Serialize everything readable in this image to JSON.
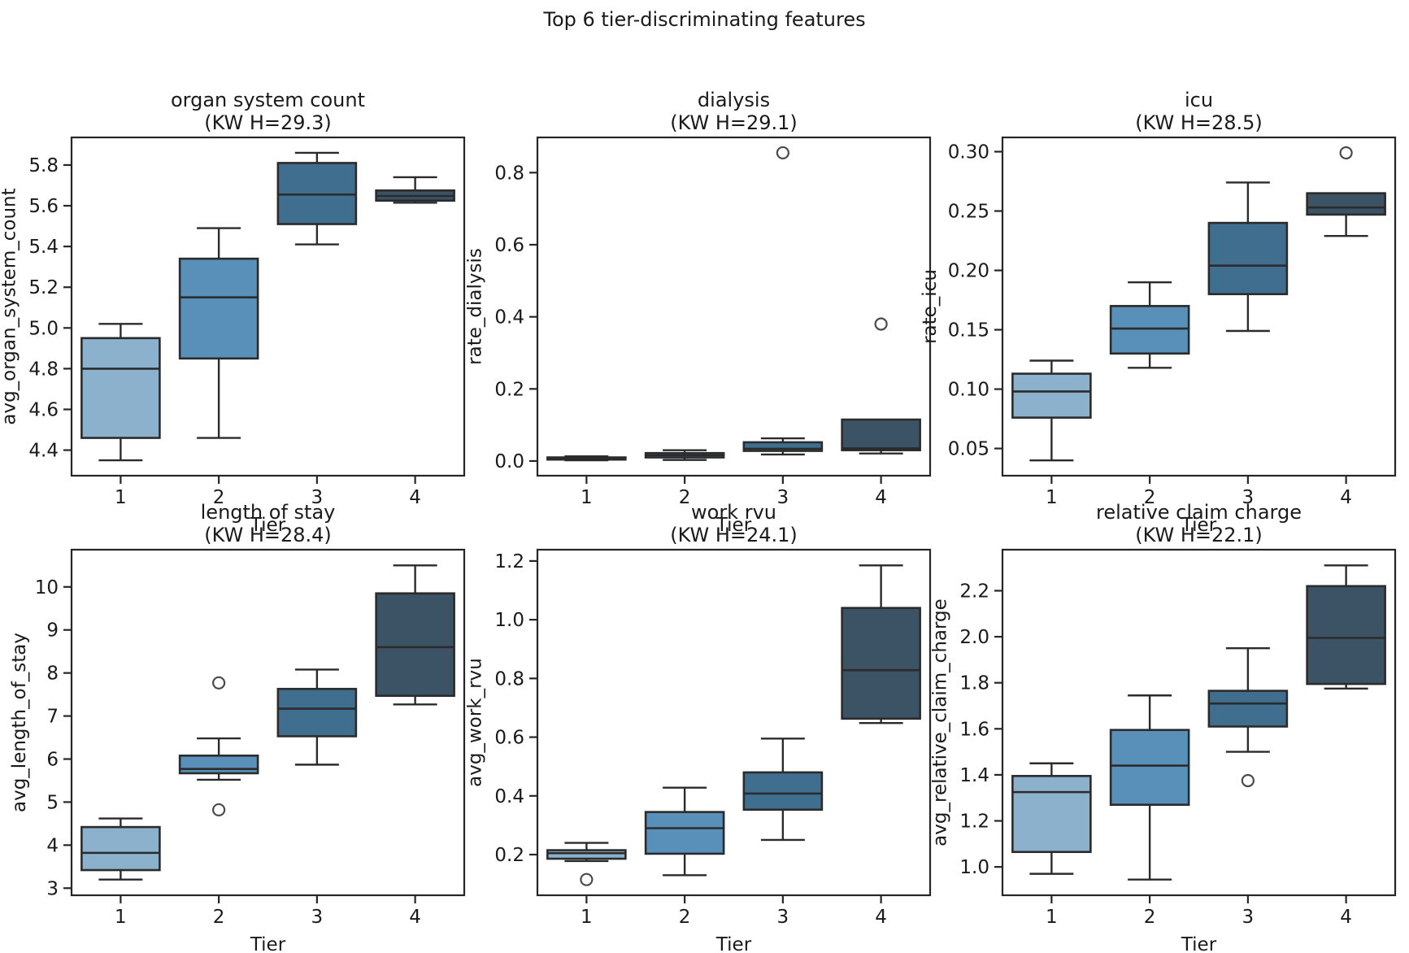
{
  "figure": {
    "suptitle": "Top 6 tier-discriminating features",
    "background": "#ffffff"
  },
  "palette": {
    "tier1": "#8CB1CD",
    "tier2": "#5890B9",
    "tier3": "#3F6E8F",
    "tier4": "#3C5265",
    "box_edge": "#2B2B2B",
    "whisker": "#2B2B2B",
    "outlier_edge": "#4A4A4A",
    "spine": "#262626",
    "text": "#1A1A1A"
  },
  "chart_data": [
    {
      "type": "box",
      "slug": "organ-system-count",
      "title": "organ system count",
      "subtitle": "(KW H=29.3)",
      "kw_h": 29.3,
      "xlabel": "Tier",
      "ylabel": "avg_organ_system_count",
      "categories": [
        "1",
        "2",
        "3",
        "4"
      ],
      "ylim": [
        4.2745,
        5.9355
      ],
      "yticks": [
        {
          "v": 4.4,
          "label": "4.4"
        },
        {
          "v": 4.6,
          "label": "4.6"
        },
        {
          "v": 4.8,
          "label": "4.8"
        },
        {
          "v": 5.0,
          "label": "5.0"
        },
        {
          "v": 5.2,
          "label": "5.2"
        },
        {
          "v": 5.4,
          "label": "5.4"
        },
        {
          "v": 5.6,
          "label": "5.6"
        },
        {
          "v": 5.8,
          "label": "5.8"
        }
      ],
      "boxes": [
        {
          "tier": "1",
          "whislo": 4.35,
          "q1": 4.46,
          "med": 4.8,
          "q3": 4.95,
          "whishi": 5.02,
          "fliers": []
        },
        {
          "tier": "2",
          "whislo": 4.46,
          "q1": 4.85,
          "med": 5.15,
          "q3": 5.34,
          "whishi": 5.49,
          "fliers": []
        },
        {
          "tier": "3",
          "whislo": 5.41,
          "q1": 5.51,
          "med": 5.655,
          "q3": 5.81,
          "whishi": 5.86,
          "fliers": []
        },
        {
          "tier": "4",
          "whislo": 5.615,
          "q1": 5.625,
          "med": 5.648,
          "q3": 5.675,
          "whishi": 5.74,
          "fliers": []
        }
      ]
    },
    {
      "type": "box",
      "slug": "dialysis",
      "title": "dialysis",
      "subtitle": "(KW H=29.1)",
      "kw_h": 29.1,
      "xlabel": "Tier",
      "ylabel": "rate_dialysis",
      "categories": [
        "1",
        "2",
        "3",
        "4"
      ],
      "ylim": [
        -0.0407,
        0.8977
      ],
      "yticks": [
        {
          "v": 0.0,
          "label": "0.0"
        },
        {
          "v": 0.2,
          "label": "0.2"
        },
        {
          "v": 0.4,
          "label": "0.4"
        },
        {
          "v": 0.6,
          "label": "0.6"
        },
        {
          "v": 0.8,
          "label": "0.8"
        }
      ],
      "boxes": [
        {
          "tier": "1",
          "whislo": 0.002,
          "q1": 0.004,
          "med": 0.007,
          "q3": 0.01,
          "whishi": 0.013,
          "fliers": []
        },
        {
          "tier": "2",
          "whislo": 0.003,
          "q1": 0.01,
          "med": 0.016,
          "q3": 0.022,
          "whishi": 0.03,
          "fliers": []
        },
        {
          "tier": "3",
          "whislo": 0.018,
          "q1": 0.028,
          "med": 0.034,
          "q3": 0.052,
          "whishi": 0.063,
          "fliers": [
            0.855
          ]
        },
        {
          "tier": "4",
          "whislo": 0.021,
          "q1": 0.03,
          "med": 0.035,
          "q3": 0.115,
          "whishi": 0.115,
          "fliers": [
            0.38
          ]
        }
      ]
    },
    {
      "type": "box",
      "slug": "icu",
      "title": "icu",
      "subtitle": "(KW H=28.5)",
      "kw_h": 28.5,
      "xlabel": "Tier",
      "ylabel": "rate_icu",
      "categories": [
        "1",
        "2",
        "3",
        "4"
      ],
      "ylim": [
        0.0271,
        0.312
      ],
      "yticks": [
        {
          "v": 0.05,
          "label": "0.05"
        },
        {
          "v": 0.1,
          "label": "0.10"
        },
        {
          "v": 0.15,
          "label": "0.15"
        },
        {
          "v": 0.2,
          "label": "0.20"
        },
        {
          "v": 0.25,
          "label": "0.25"
        },
        {
          "v": 0.3,
          "label": "0.30"
        }
      ],
      "boxes": [
        {
          "tier": "1",
          "whislo": 0.04,
          "q1": 0.076,
          "med": 0.098,
          "q3": 0.113,
          "whishi": 0.124,
          "fliers": []
        },
        {
          "tier": "2",
          "whislo": 0.118,
          "q1": 0.13,
          "med": 0.151,
          "q3": 0.17,
          "whishi": 0.19,
          "fliers": []
        },
        {
          "tier": "3",
          "whislo": 0.149,
          "q1": 0.18,
          "med": 0.204,
          "q3": 0.24,
          "whishi": 0.274,
          "fliers": []
        },
        {
          "tier": "4",
          "whislo": 0.229,
          "q1": 0.247,
          "med": 0.253,
          "q3": 0.265,
          "whishi": 0.265,
          "fliers": [
            0.299
          ]
        }
      ]
    },
    {
      "type": "box",
      "slug": "length-of-stay",
      "title": "length of stay",
      "subtitle": "(KW H=28.4)",
      "kw_h": 28.4,
      "xlabel": "Tier",
      "ylabel": "avg_length_of_stay",
      "categories": [
        "1",
        "2",
        "3",
        "4"
      ],
      "ylim": [
        2.835,
        10.865
      ],
      "yticks": [
        {
          "v": 3,
          "label": "3"
        },
        {
          "v": 4,
          "label": "4"
        },
        {
          "v": 5,
          "label": "5"
        },
        {
          "v": 6,
          "label": "6"
        },
        {
          "v": 7,
          "label": "7"
        },
        {
          "v": 8,
          "label": "8"
        },
        {
          "v": 9,
          "label": "9"
        },
        {
          "v": 10,
          "label": "10"
        }
      ],
      "boxes": [
        {
          "tier": "1",
          "whislo": 3.2,
          "q1": 3.42,
          "med": 3.82,
          "q3": 4.42,
          "whishi": 4.62,
          "fliers": []
        },
        {
          "tier": "2",
          "whislo": 5.52,
          "q1": 5.67,
          "med": 5.77,
          "q3": 6.08,
          "whishi": 6.48,
          "fliers": [
            7.77,
            4.82
          ]
        },
        {
          "tier": "3",
          "whislo": 5.87,
          "q1": 6.53,
          "med": 7.17,
          "q3": 7.63,
          "whishi": 8.08,
          "fliers": []
        },
        {
          "tier": "4",
          "whislo": 7.27,
          "q1": 7.47,
          "med": 8.6,
          "q3": 9.85,
          "whishi": 10.5,
          "fliers": []
        }
      ]
    },
    {
      "type": "box",
      "slug": "work-rvu",
      "title": "work rvu",
      "subtitle": "(KW H=24.1)",
      "kw_h": 24.1,
      "xlabel": "Tier",
      "ylabel": "avg_work_rvu",
      "categories": [
        "1",
        "2",
        "3",
        "4"
      ],
      "ylim": [
        0.0615,
        1.2385
      ],
      "yticks": [
        {
          "v": 0.2,
          "label": "0.2"
        },
        {
          "v": 0.4,
          "label": "0.4"
        },
        {
          "v": 0.6,
          "label": "0.6"
        },
        {
          "v": 0.8,
          "label": "0.8"
        },
        {
          "v": 1.0,
          "label": "1.0"
        },
        {
          "v": 1.2,
          "label": "1.2"
        }
      ],
      "boxes": [
        {
          "tier": "1",
          "whislo": 0.178,
          "q1": 0.186,
          "med": 0.205,
          "q3": 0.215,
          "whishi": 0.24,
          "fliers": [
            0.115
          ]
        },
        {
          "tier": "2",
          "whislo": 0.13,
          "q1": 0.203,
          "med": 0.29,
          "q3": 0.345,
          "whishi": 0.428,
          "fliers": []
        },
        {
          "tier": "3",
          "whislo": 0.25,
          "q1": 0.353,
          "med": 0.408,
          "q3": 0.48,
          "whishi": 0.595,
          "fliers": []
        },
        {
          "tier": "4",
          "whislo": 0.648,
          "q1": 0.663,
          "med": 0.828,
          "q3": 1.04,
          "whishi": 1.185,
          "fliers": []
        }
      ]
    },
    {
      "type": "box",
      "slug": "relative-claim-charge",
      "title": "relative claim charge",
      "subtitle": "(KW H=22.1)",
      "kw_h": 22.1,
      "xlabel": "Tier",
      "ylabel": "avg_relative_claim_charge",
      "categories": [
        "1",
        "2",
        "3",
        "4"
      ],
      "ylim": [
        0.8768,
        2.3783
      ],
      "yticks": [
        {
          "v": 1.0,
          "label": "1.0"
        },
        {
          "v": 1.2,
          "label": "1.2"
        },
        {
          "v": 1.4,
          "label": "1.4"
        },
        {
          "v": 1.6,
          "label": "1.6"
        },
        {
          "v": 1.8,
          "label": "1.8"
        },
        {
          "v": 2.0,
          "label": "2.0"
        },
        {
          "v": 2.2,
          "label": "2.2"
        }
      ],
      "boxes": [
        {
          "tier": "1",
          "whislo": 0.97,
          "q1": 1.065,
          "med": 1.325,
          "q3": 1.395,
          "whishi": 1.45,
          "fliers": []
        },
        {
          "tier": "2",
          "whislo": 0.945,
          "q1": 1.27,
          "med": 1.44,
          "q3": 1.595,
          "whishi": 1.745,
          "fliers": []
        },
        {
          "tier": "3",
          "whislo": 1.5,
          "q1": 1.61,
          "med": 1.71,
          "q3": 1.765,
          "whishi": 1.95,
          "fliers": [
            1.375
          ]
        },
        {
          "tier": "4",
          "whislo": 1.775,
          "q1": 1.795,
          "med": 1.995,
          "q3": 2.22,
          "whishi": 2.31,
          "fliers": []
        }
      ]
    }
  ]
}
